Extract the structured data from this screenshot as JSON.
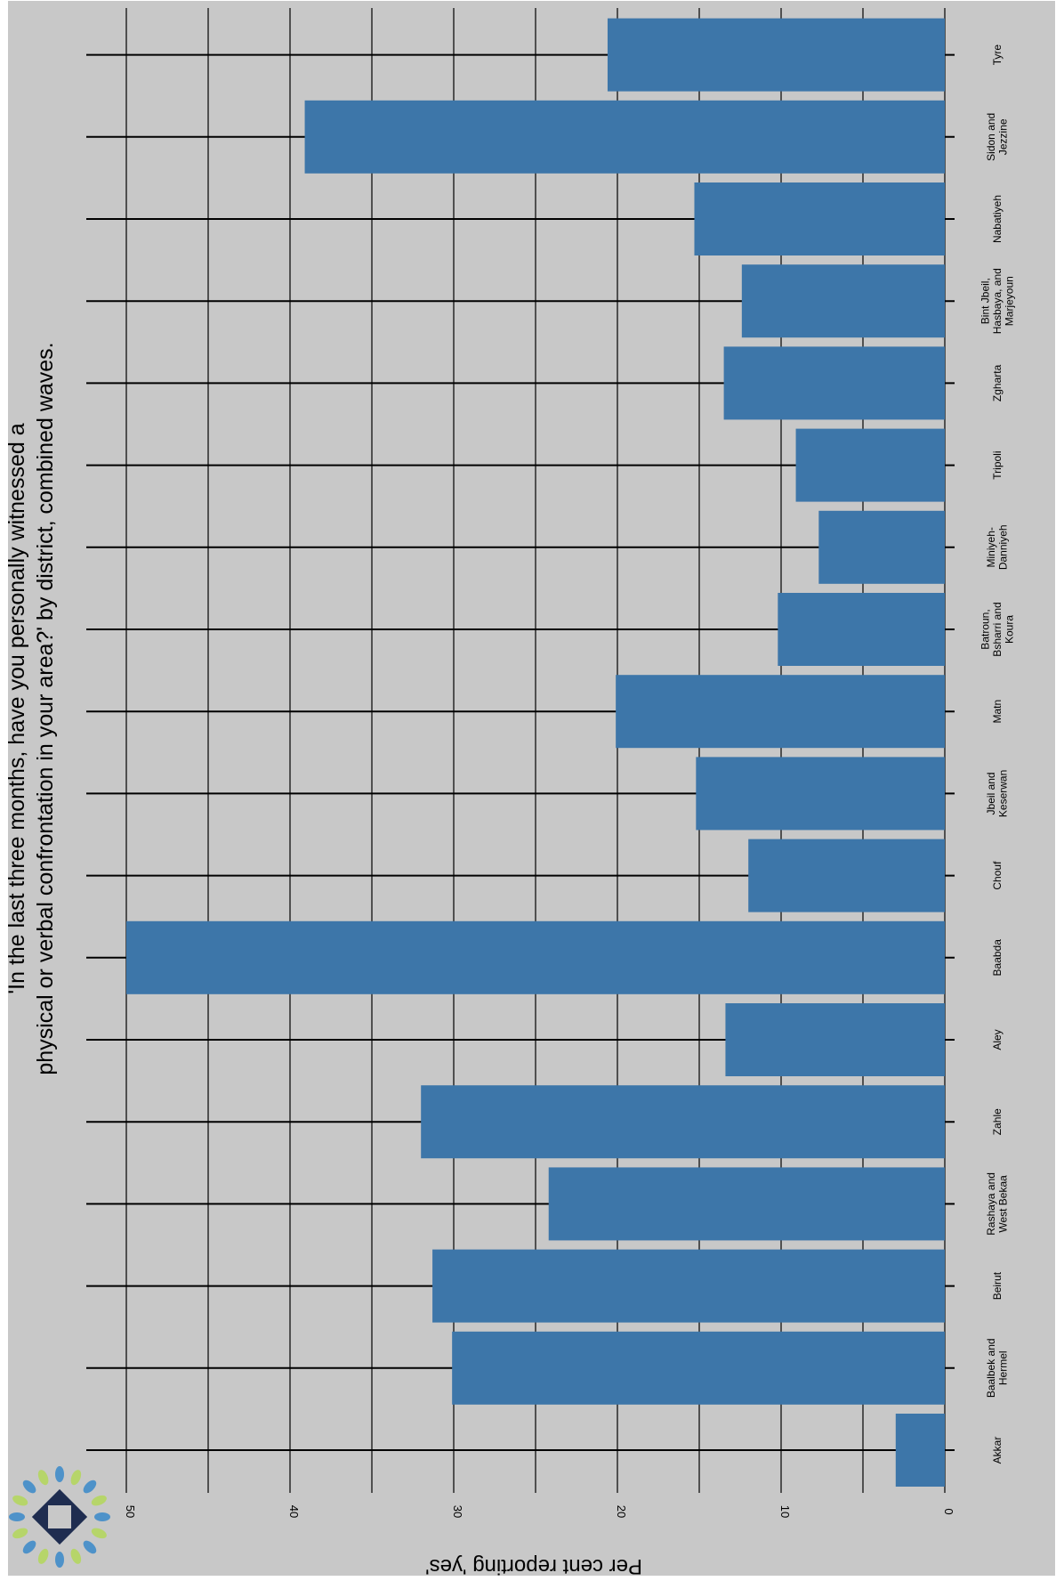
{
  "chart_data": {
    "type": "bar",
    "orientation": "horizontal",
    "rotation": "page rotated 90 degrees",
    "title_lines": [
      "'In the last three months, have you personally witnessed a",
      "physical or verbal confrontation in your area?' by district, combined waves."
    ],
    "xlabel": "",
    "ylabel": "Per cent reporting 'yes'",
    "ylim": [
      0,
      52
    ],
    "ticks": [
      0,
      10,
      20,
      30,
      40,
      50
    ],
    "grid": true,
    "categories": [
      "Akkar",
      "Baalbek and Hermel",
      "Beirut",
      "Rashaya and West Bekaa",
      "Zahle",
      "Aley",
      "Baabda",
      "Chouf",
      "Jbeil and Keserwan",
      "Matn",
      "Batroun, Bsharri and Koura",
      "Miniyeh-Danniyeh",
      "Tripoli",
      "Zgharta",
      "Bint Jbeil, Hasbaya, and Marjeyoun",
      "Nabatiyeh",
      "Sidon and Jezzine",
      "Tyre"
    ],
    "category_label_lines": [
      [
        "Akkar"
      ],
      [
        "Baalbek and",
        "Hermel"
      ],
      [
        "Beirut"
      ],
      [
        "Rashaya and",
        "West Bekaa"
      ],
      [
        "Zahle"
      ],
      [
        "Aley"
      ],
      [
        "Baabda"
      ],
      [
        "Chouf"
      ],
      [
        "Jbeil and",
        "Keserwan"
      ],
      [
        "Matn"
      ],
      [
        "Batroun,",
        "Bsharri and",
        "Koura"
      ],
      [
        "Miniyeh-",
        "Danniyeh"
      ],
      [
        "Tripoli"
      ],
      [
        "Zgharta"
      ],
      [
        "Bint Jbeil,",
        "Hasbaya, and",
        "Marjeyoun"
      ],
      [
        "Nabatiyeh"
      ],
      [
        "Sidon and",
        "Jezzine"
      ],
      [
        "Tyre"
      ]
    ],
    "values": [
      3.0,
      30.1,
      31.3,
      24.2,
      32.0,
      13.4,
      50.0,
      12.0,
      15.2,
      20.1,
      10.2,
      7.7,
      9.1,
      13.5,
      12.4,
      15.3,
      39.1,
      20.6
    ],
    "colors": {
      "bar": "#3d76a9",
      "panel_background": "#c8c8c8",
      "grid": "#000000",
      "logo_dark": "#1f2d50",
      "logo_blue": "#4e92c9",
      "logo_green": "#b6d56a"
    }
  },
  "logo": {
    "icon": "organization-logo-icon"
  }
}
